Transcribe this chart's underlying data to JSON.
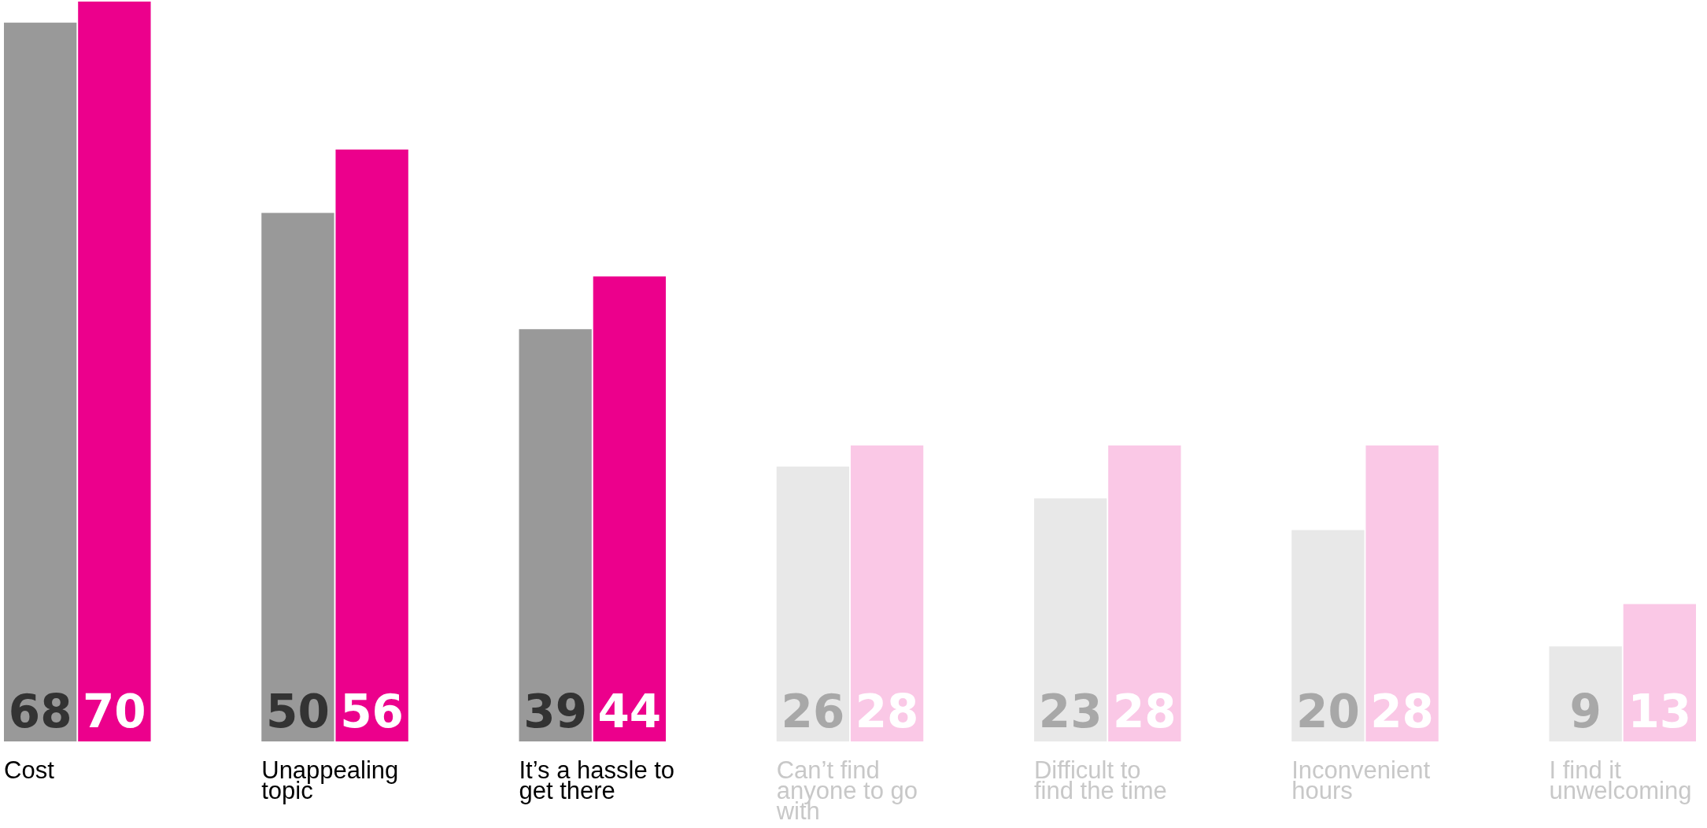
{
  "chart_data": {
    "type": "bar",
    "categories": [
      "Cost",
      "Unappealing topic",
      "It’s a hassle to get there",
      "Can’t find anyone to go with",
      "Difficult to find the time",
      "Inconvenient hours",
      "I find it unwelcoming"
    ],
    "series": [
      {
        "colors": [
          "#999999",
          "#999999",
          "#999999",
          "#e8e8e8",
          "#e8e8e8",
          "#e8e8e8",
          "#e8e8e8"
        ],
        "values": [
          68,
          50,
          39,
          26,
          23,
          20,
          9
        ]
      },
      {
        "colors": [
          "#ec008c",
          "#ec008c",
          "#ec008c",
          "#fac8e6",
          "#fac8e6",
          "#fac8e6",
          "#fac8e6"
        ],
        "values": [
          70,
          56,
          44,
          28,
          28,
          28,
          13
        ]
      }
    ],
    "data_labels": true
  }
}
